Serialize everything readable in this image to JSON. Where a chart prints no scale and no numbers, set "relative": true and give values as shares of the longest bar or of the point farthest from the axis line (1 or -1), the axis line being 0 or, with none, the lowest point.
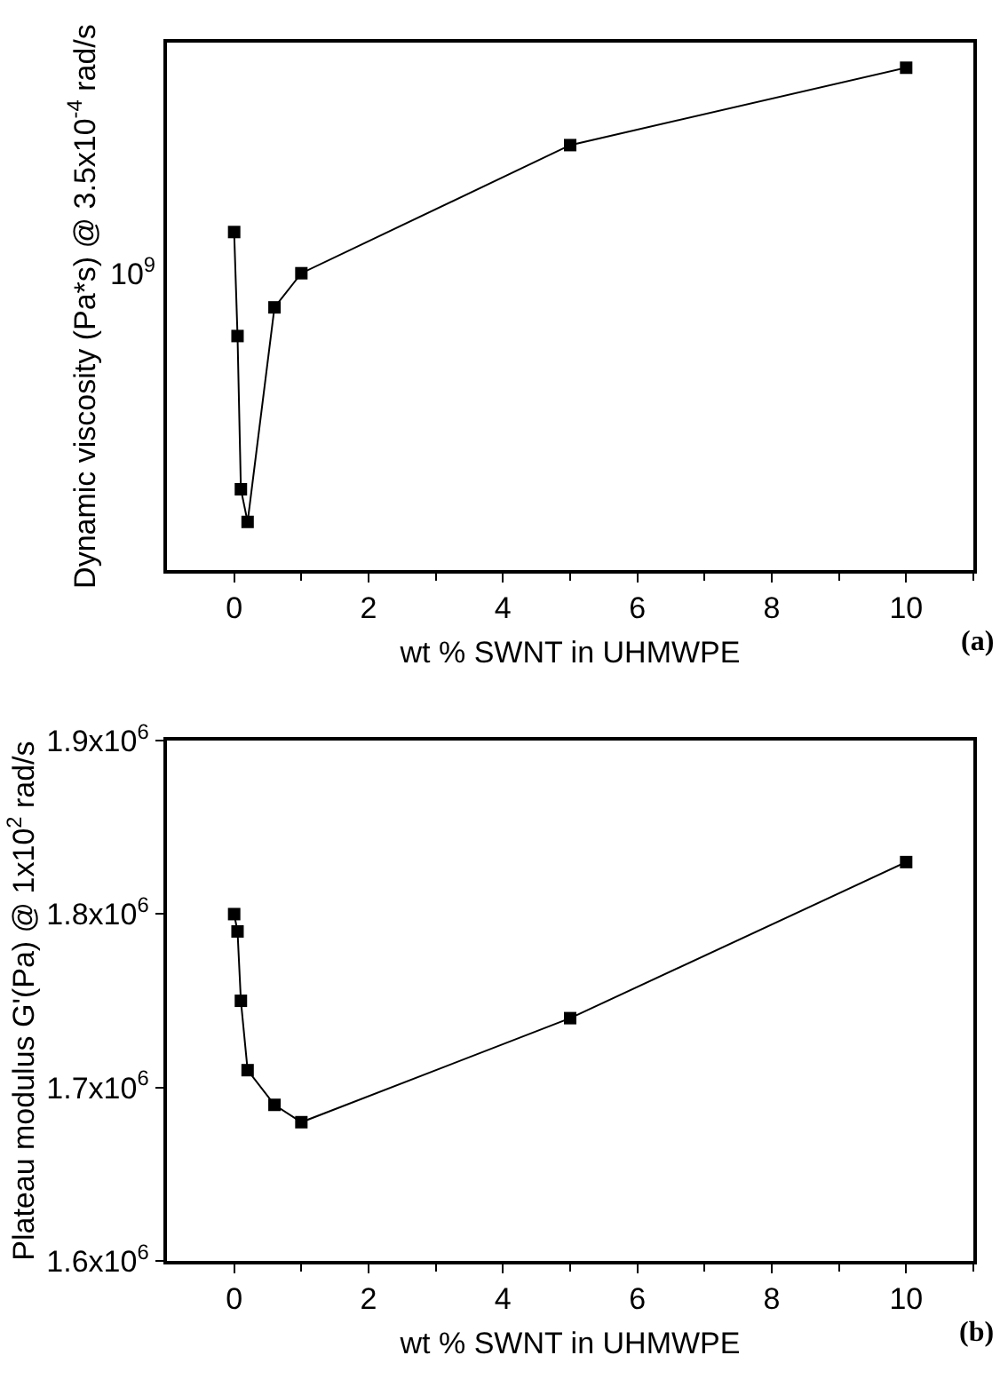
{
  "chart_data": [
    {
      "type": "line",
      "relative": true,
      "xlabel": "wt % SWNT in UHMWPE",
      "ylabel": "Dynamic viscosity (Pa*s) @ 3.5x10$^{-4}$ rad/s",
      "marker": "square",
      "line_style": "solid",
      "x": [
        0,
        0.05,
        0.1,
        0.2,
        0.6,
        1,
        5,
        10
      ],
      "series": [
        {
          "color": "#000000",
          "values": [
            0.673,
            0.466,
            0.161,
            0.096,
            0.523,
            0.591,
            0.846,
            1
          ]
        }
      ],
      "xlim": [
        -1,
        11
      ],
      "xticks": [
        0,
        {
          "value": 1,
          "label": null
        },
        2,
        {
          "value": 3,
          "label": null
        },
        4,
        {
          "value": 5,
          "label": null
        },
        6,
        {
          "value": 7,
          "label": null
        },
        8,
        {
          "value": 9,
          "label": null
        },
        10,
        {
          "value": 11,
          "label": null
        }
      ],
      "annotations": [
        "10$^{9}$",
        "(a)"
      ]
    },
    {
      "type": "line",
      "xlabel": "wt % SWNT in UHMWPE",
      "ylabel": "Plateau modulus G'(Pa) @ 1x10$^{2}$ rad/s",
      "marker": "square",
      "line_style": "solid",
      "x": [
        0,
        0.05,
        0.1,
        0.2,
        0.6,
        1,
        5,
        10
      ],
      "series": [
        {
          "color": "#000000",
          "values": [
            1800000,
            1790000,
            1750000,
            1710000,
            1690000,
            1680000,
            1740000,
            1830000
          ]
        }
      ],
      "xlim": [
        -1,
        11
      ],
      "xticks": [
        0,
        {
          "value": 1,
          "label": null
        },
        2,
        {
          "value": 3,
          "label": null
        },
        4,
        {
          "value": 5,
          "label": null
        },
        6,
        {
          "value": 7,
          "label": null
        },
        8,
        {
          "value": 9,
          "label": null
        },
        10,
        {
          "value": 11,
          "label": null
        }
      ],
      "ylim": [
        1600000,
        1900000
      ],
      "yticks": [
        {
          "value": 1600000,
          "label": "1.6x10$^{6}$"
        },
        {
          "value": 1700000,
          "label": "1.7x10$^{6}$"
        },
        {
          "value": 1800000,
          "label": "1.8x10$^{6}$"
        },
        {
          "value": 1900000,
          "label": "1.9x10$^{6}$"
        }
      ],
      "annotations": [
        "(b)"
      ]
    }
  ]
}
